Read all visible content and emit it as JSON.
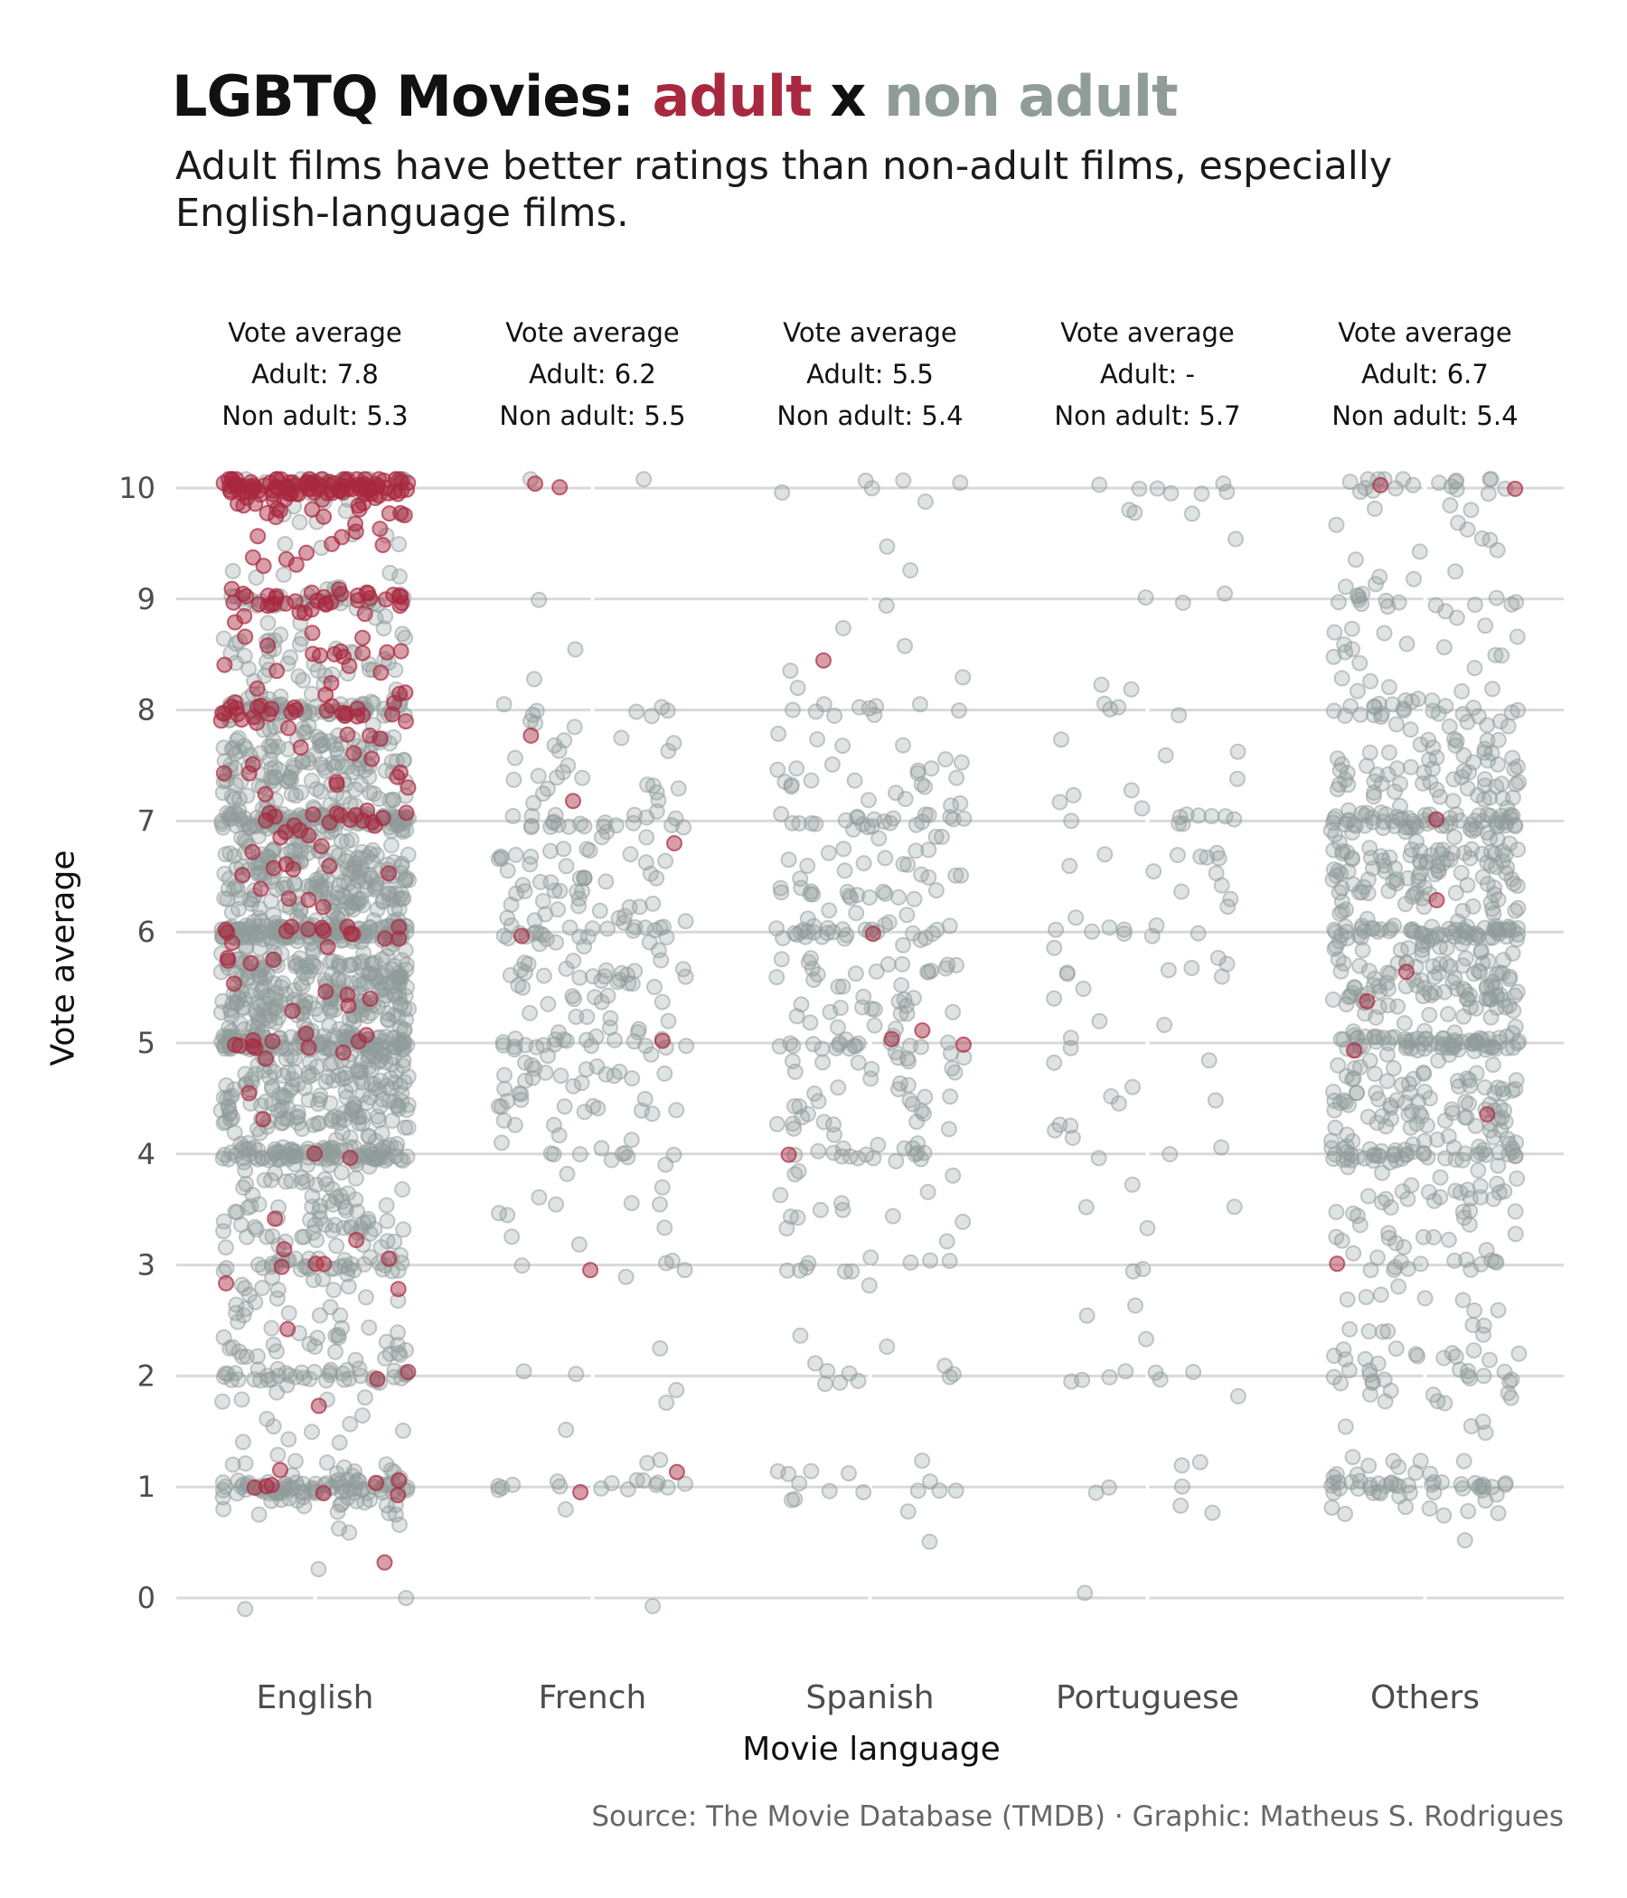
{
  "title": {
    "prefix": "LGBTQ Movies:",
    "adult": "adult",
    "connector": "x",
    "non_adult": "non adult"
  },
  "subtitle": "Adult films have better ratings than non-adult films, especially English-language films.",
  "caption": "Source: The Movie Database (TMDB) · Graphic: Matheus S. Rodrigues",
  "colors": {
    "adult": "#a8283f",
    "non_adult": "#8f9c9a",
    "grid": "#d9d9d9"
  },
  "chart_data": {
    "type": "scatter",
    "xlabel": "Movie language",
    "ylabel": "Vote average",
    "ylim": [
      0,
      10
    ],
    "yticks": [
      "0",
      "1",
      "2",
      "3",
      "4",
      "5",
      "6",
      "7",
      "8",
      "9",
      "10"
    ],
    "categories": [
      "English",
      "French",
      "Spanish",
      "Portuguese",
      "Others"
    ],
    "grid": true,
    "facet_annotations": [
      {
        "language": "English",
        "heading": "Vote average",
        "adult": "Adult: 7.8",
        "non_adult": "Non adult: 5.3"
      },
      {
        "language": "French",
        "heading": "Vote average",
        "adult": "Adult: 6.2",
        "non_adult": "Non adult: 5.5"
      },
      {
        "language": "Spanish",
        "heading": "Vote average",
        "adult": "Adult: 5.5",
        "non_adult": "Non adult: 5.4"
      },
      {
        "language": "Portuguese",
        "heading": "Vote average",
        "adult": "Adult: -",
        "non_adult": "Non adult: 5.7"
      },
      {
        "language": "Others",
        "heading": "Vote average",
        "adult": "Adult: 6.7",
        "non_adult": "Non adult: 5.4"
      }
    ],
    "series": [
      {
        "name": "non adult",
        "groups": [
          {
            "language": "English",
            "counts": {
              "0": 2,
              "0.5": 4,
              "1": 110,
              "1.5": 10,
              "2": 60,
              "2.5": 30,
              "3": 55,
              "3.5": 60,
              "4": 130,
              "4.5": 130,
              "5": 190,
              "5.5": 190,
              "6": 200,
              "6.5": 160,
              "7": 160,
              "7.5": 110,
              "8": 90,
              "8.5": 40,
              "9": 40,
              "9.5": 8,
              "10": 30
            }
          },
          {
            "language": "French",
            "counts": {
              "0": 1,
              "1": 18,
              "1.5": 1,
              "2": 5,
              "3": 6,
              "3.5": 9,
              "4": 14,
              "4.5": 30,
              "5": 36,
              "5.5": 34,
              "6": 40,
              "6.5": 34,
              "7": 28,
              "7.5": 18,
              "8": 10,
              "8.5": 2,
              "9": 1,
              "10": 2
            }
          },
          {
            "language": "Spanish",
            "counts": {
              "0.5": 1,
              "1": 15,
              "2": 9,
              "2.5": 2,
              "3": 12,
              "3.5": 10,
              "4": 24,
              "4.5": 24,
              "5": 34,
              "5.5": 32,
              "6": 36,
              "6.5": 32,
              "7": 30,
              "7.5": 20,
              "8": 12,
              "8.5": 4,
              "9": 1,
              "9.5": 2,
              "10": 6
            }
          },
          {
            "language": "Portuguese",
            "counts": {
              "0": 1,
              "1": 7,
              "2": 8,
              "2.5": 3,
              "3": 2,
              "3.5": 4,
              "4": 5,
              "4.5": 6,
              "5": 6,
              "5.5": 8,
              "6": 12,
              "6.5": 12,
              "7": 12,
              "7.5": 5,
              "8": 6,
              "9": 3,
              "9.5": 1,
              "10": 10
            }
          },
          {
            "language": "Others",
            "counts": {
              "0.5": 2,
              "1": 55,
              "1.5": 5,
              "2": 38,
              "2.5": 14,
              "3": 22,
              "3.5": 34,
              "4": 70,
              "4.5": 70,
              "5": 88,
              "5.5": 90,
              "6": 96,
              "6.5": 90,
              "7": 86,
              "7.5": 56,
              "8": 36,
              "8.5": 16,
              "9": 22,
              "9.5": 8,
              "10": 22
            }
          }
        ]
      },
      {
        "name": "adult",
        "groups": [
          {
            "language": "English",
            "counts": {
              "0.5": 1,
              "1": 8,
              "1.5": 1,
              "2": 2,
              "2.5": 1,
              "3": 8,
              "3.5": 1,
              "4": 2,
              "4.5": 2,
              "5": 12,
              "5.5": 8,
              "6": 18,
              "6.5": 10,
              "7": 22,
              "7.5": 12,
              "8": 36,
              "8.5": 16,
              "9": 38,
              "9.5": 14,
              "10": 120
            }
          },
          {
            "language": "French",
            "counts": {
              "1": 2,
              "3": 1,
              "5": 1,
              "6": 1,
              "7": 2,
              "8": 1,
              "10": 2
            }
          },
          {
            "language": "Spanish",
            "counts": {
              "4": 1,
              "5": 3,
              "6": 1,
              "8.5": 1
            }
          },
          {
            "language": "Portuguese",
            "counts": {}
          },
          {
            "language": "Others",
            "counts": {
              "3": 1,
              "4.5": 1,
              "5": 1,
              "5.5": 2,
              "6.5": 1,
              "7": 1,
              "10": 2
            }
          }
        ]
      }
    ]
  }
}
